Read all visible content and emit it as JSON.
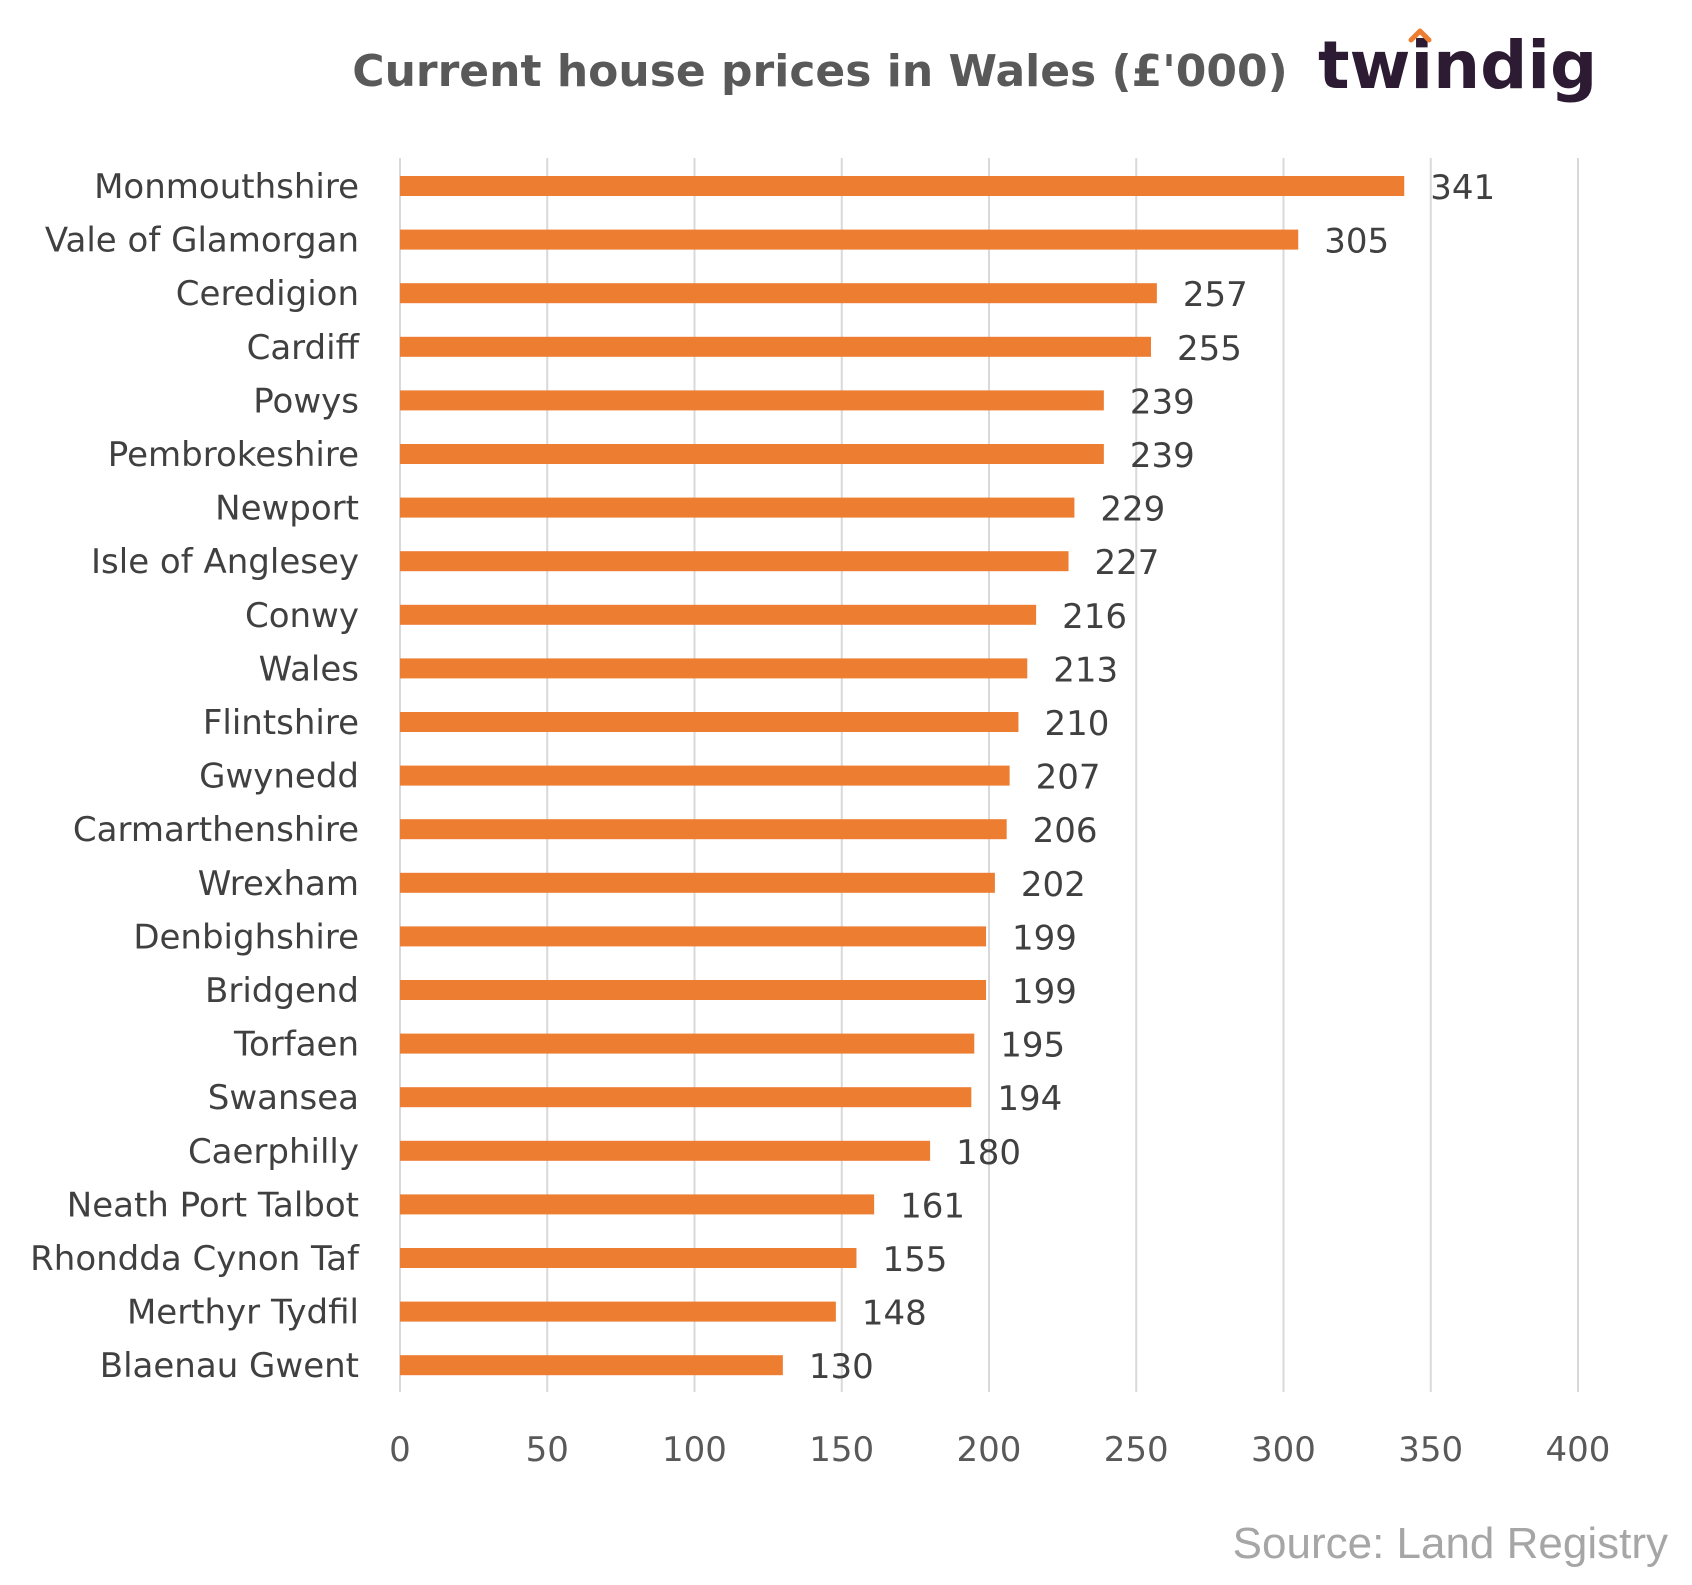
{
  "chart_data": {
    "type": "bar",
    "orientation": "horizontal",
    "title": "Current house prices in Wales (£'000)",
    "categories": [
      "Monmouthshire",
      "Vale of Glamorgan",
      "Ceredigion",
      "Cardiff",
      "Powys",
      "Pembrokeshire",
      "Newport",
      "Isle of Anglesey",
      "Conwy",
      "Wales",
      "Flintshire",
      "Gwynedd",
      "Carmarthenshire",
      "Wrexham",
      "Denbighshire",
      "Bridgend",
      "Torfaen",
      "Swansea",
      "Caerphilly",
      "Neath Port Talbot",
      "Rhondda Cynon Taf",
      "Merthyr Tydfil",
      "Blaenau Gwent"
    ],
    "values": [
      341,
      305,
      257,
      255,
      239,
      239,
      229,
      227,
      216,
      213,
      210,
      207,
      206,
      202,
      199,
      199,
      195,
      194,
      180,
      161,
      155,
      148,
      130
    ],
    "xlim": [
      0,
      400
    ],
    "xticks": [
      0,
      50,
      100,
      150,
      200,
      250,
      300,
      350,
      400
    ],
    "grid": true,
    "bar_color": "#ed7d31",
    "data_labels": true
  },
  "logo": {
    "text": "twindig",
    "text_color": "#2d1a33",
    "accent_color": "#ed7d31"
  },
  "source": "Source: Land Registry"
}
